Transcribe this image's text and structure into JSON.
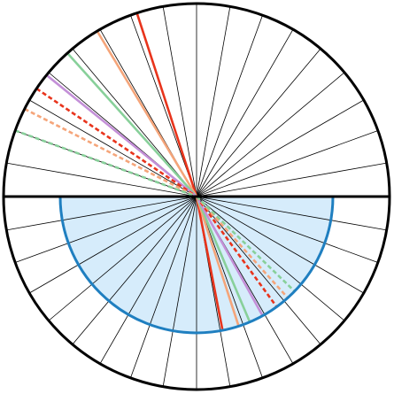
{
  "diagram": {
    "spoke_count": 36,
    "colors": {
      "outline": "#000000",
      "spoke": "#000000",
      "semicircle_stroke": "#1f7fc0",
      "semicircle_fill": "#d6ecfb"
    },
    "rays": [
      {
        "name": "ray-red-solid",
        "color": "#e8341c",
        "style": "solid",
        "incident_angle_deg": 18,
        "refracted_angle_deg": 11
      },
      {
        "name": "ray-orange-solid",
        "color": "#f5a57a",
        "style": "solid",
        "incident_angle_deg": 31,
        "refracted_angle_deg": 18
      },
      {
        "name": "ray-green-solid",
        "color": "#88d09a",
        "style": "solid",
        "incident_angle_deg": 42,
        "refracted_angle_deg": 23
      },
      {
        "name": "ray-purple-solid",
        "color": "#c490d8",
        "style": "solid",
        "incident_angle_deg": 51,
        "refracted_angle_deg": 29
      },
      {
        "name": "ray-red-dashed",
        "color": "#e8341c",
        "style": "dashed",
        "incident_angle_deg": 56,
        "refracted_angle_deg": 36
      },
      {
        "name": "ray-orange-dashed",
        "color": "#f5a57a",
        "style": "dashed",
        "incident_angle_deg": 63,
        "refracted_angle_deg": 42
      },
      {
        "name": "ray-green-dashed",
        "color": "#88d09a",
        "style": "dashed",
        "incident_angle_deg": 70,
        "refracted_angle_deg": 46
      }
    ]
  }
}
